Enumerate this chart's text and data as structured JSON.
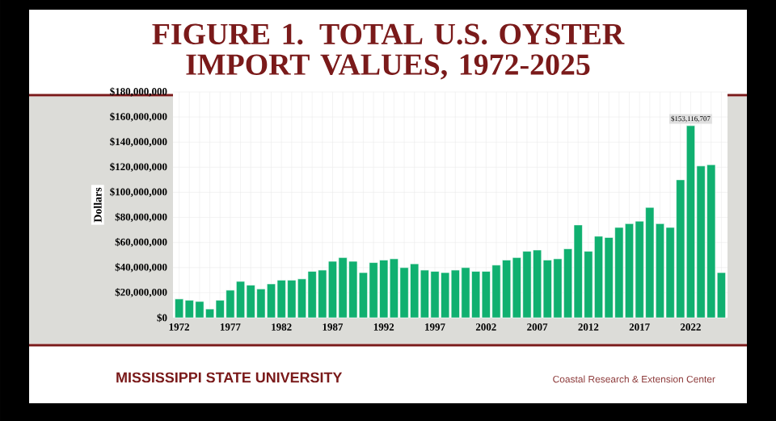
{
  "chart_data": {
    "type": "bar",
    "title": "FIGURE 1. TOTAL U.S. OYSTER IMPORT VALUES, 1972-2025",
    "ylabel": "Dollars",
    "categories": [
      "1972",
      null,
      null,
      null,
      null,
      "1977",
      null,
      null,
      null,
      null,
      "1982",
      null,
      null,
      null,
      null,
      "1987",
      null,
      null,
      null,
      null,
      "1992",
      null,
      null,
      null,
      null,
      "1997",
      null,
      null,
      null,
      null,
      "2002",
      null,
      null,
      null,
      null,
      "2007",
      null,
      null,
      null,
      null,
      "2012",
      null,
      null,
      null,
      null,
      "2017",
      null,
      null,
      null,
      null,
      "2022",
      null,
      null,
      null
    ],
    "values": [
      15000000,
      14000000,
      13000000,
      7000000,
      14000000,
      22000000,
      29000000,
      26000000,
      23000000,
      27000000,
      30000000,
      30000000,
      31000000,
      37000000,
      38000000,
      45000000,
      48000000,
      45000000,
      36000000,
      44000000,
      46000000,
      47000000,
      40000000,
      43000000,
      38000000,
      37000000,
      36000000,
      38000000,
      40000000,
      37000000,
      37000000,
      42000000,
      46000000,
      48000000,
      53000000,
      54000000,
      46000000,
      47000000,
      55000000,
      74000000,
      53000000,
      65000000,
      64000000,
      72000000,
      75000000,
      77000000,
      88000000,
      75000000,
      72000000,
      110000000,
      153116707,
      121000000,
      122000000,
      36000000
    ],
    "value_labels": [
      null,
      null,
      null,
      null,
      null,
      null,
      null,
      null,
      null,
      null,
      null,
      null,
      null,
      null,
      null,
      null,
      null,
      null,
      null,
      null,
      null,
      null,
      null,
      null,
      null,
      null,
      null,
      null,
      null,
      null,
      null,
      null,
      null,
      null,
      null,
      null,
      null,
      null,
      null,
      null,
      null,
      null,
      null,
      null,
      null,
      null,
      null,
      null,
      null,
      null,
      "$153,116,707",
      null,
      null,
      null
    ],
    "color": "#10b070",
    "ylim": [
      0,
      180000000
    ],
    "yticks": [
      {
        "value": 0,
        "label": "$0"
      },
      {
        "value": 20000000,
        "label": "$20,000,000"
      },
      {
        "value": 40000000,
        "label": "$40,000,000"
      },
      {
        "value": 60000000,
        "label": "$60,000,000"
      },
      {
        "value": 80000000,
        "label": "$80,000,000"
      },
      {
        "value": 100000000,
        "label": "$100,000,000"
      },
      {
        "value": 120000000,
        "label": "$120,000,000"
      },
      {
        "value": 140000000,
        "label": "$140,000,000"
      },
      {
        "value": 160000000,
        "label": "$160,000,000"
      },
      {
        "value": 180000000,
        "label": "$180,000,000"
      }
    ],
    "grid": true,
    "annotations": [
      "MISSISSIPPI STATE UNIVERSITY",
      "Coastal Research & Extension Center"
    ]
  }
}
